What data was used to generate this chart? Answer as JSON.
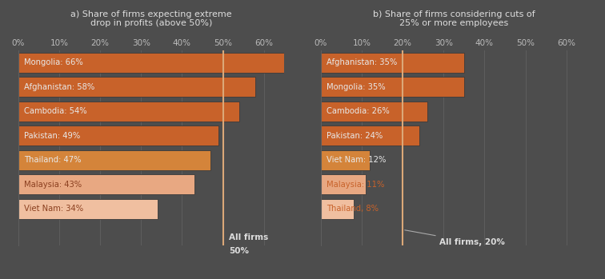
{
  "bg_color": "#4d4d4d",
  "chart_a": {
    "title": "a) Share of firms expecting extreme\ndrop in profits (above 50%)",
    "countries": [
      "Mongolia: 66%",
      "Afghanistan: 58%",
      "Cambodia: 54%",
      "Pakistan: 49%",
      "Thailand: 47%",
      "Malaysia: 43%",
      "Viet Nam: 34%"
    ],
    "values": [
      66,
      58,
      54,
      49,
      47,
      43,
      34
    ],
    "colors": [
      "#c8622a",
      "#c8622a",
      "#c8622a",
      "#c8622a",
      "#d4843a",
      "#e8a882",
      "#f0bfa0"
    ],
    "label_colors": [
      "#e8e8e8",
      "#e8e8e8",
      "#e8e8e8",
      "#e8e8e8",
      "#e8e8e8",
      "#8b4020",
      "#8b4020"
    ],
    "all_firms_value": 50,
    "all_firms_label_line1": "All firms",
    "all_firms_label_line2": "50%",
    "xlim": [
      0,
      65
    ],
    "xticks": [
      0,
      10,
      20,
      30,
      40,
      50,
      60
    ],
    "xticklabels": [
      "0%",
      "10%",
      "20%",
      "30%",
      "40%",
      "50%",
      "60%"
    ]
  },
  "chart_b": {
    "title": "b) Share of firms considering cuts of\n25% or more employees",
    "countries": [
      "Afghanistan: 35%",
      "Mongolia: 35%",
      "Cambodia: 26%",
      "Pakistan: 24%",
      "Viet Nam: 12%",
      "Malaysia: 11%",
      "Thailand, 8%"
    ],
    "values": [
      35,
      35,
      26,
      24,
      12,
      11,
      8
    ],
    "colors": [
      "#c8622a",
      "#c8622a",
      "#c8622a",
      "#c8622a",
      "#d4843a",
      "#e8a882",
      "#f0bfa0"
    ],
    "label_colors": [
      "#e8e8e8",
      "#e8e8e8",
      "#e8e8e8",
      "#e8e8e8",
      "#e8e8e8",
      "#c8622a",
      "#c8622a"
    ],
    "all_firms_value": 20,
    "all_firms_label": "All firms, 20%",
    "xlim": [
      0,
      65
    ],
    "xticks": [
      0,
      10,
      20,
      30,
      40,
      50,
      60
    ],
    "xticklabels": [
      "0%",
      "10%",
      "20%",
      "30%",
      "40%",
      "50%",
      "60%"
    ]
  },
  "tick_color": "#bbbbbb",
  "title_color": "#dddddd",
  "grid_color": "#5e5e5e",
  "all_firms_line_color": "#dba878",
  "separator_color": "#3a3a3a"
}
